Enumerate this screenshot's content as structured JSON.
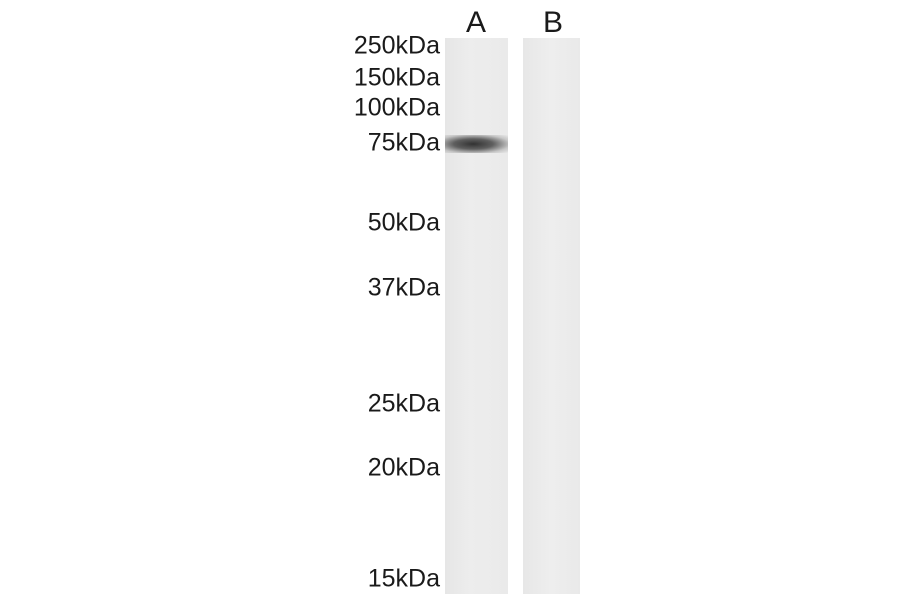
{
  "lanes": [
    {
      "label": "A",
      "bands": [
        {
          "marker": "75kDa"
        }
      ]
    },
    {
      "label": "B",
      "bands": []
    }
  ],
  "markers": [
    "250kDa",
    "150kDa",
    "100kDa",
    "75kDa",
    "50kDa",
    "37kDa",
    "25kDa",
    "20kDa",
    "15kDa"
  ],
  "colors": {
    "lane_background": "#ebebeb",
    "band": "#333333",
    "text": "#1a1a1a"
  }
}
